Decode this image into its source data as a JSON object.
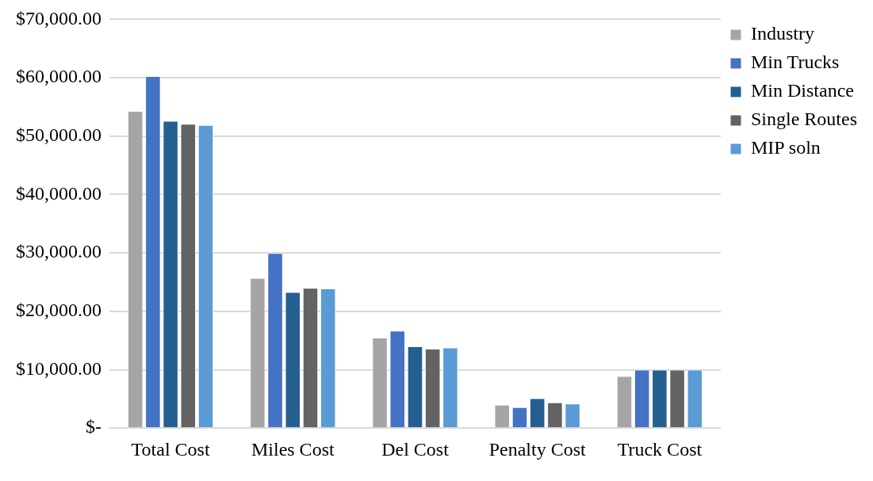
{
  "chart_data": {
    "type": "bar",
    "categories": [
      "Total Cost",
      "Miles Cost",
      "Del Cost",
      "Penalty Cost",
      "Truck Cost"
    ],
    "series": [
      {
        "name": "Industry",
        "color": "#a5a5a5",
        "values": [
          54300,
          25700,
          15500,
          4000,
          8900
        ]
      },
      {
        "name": "Min Trucks",
        "color": "#4472c4",
        "values": [
          60300,
          30000,
          16700,
          3600,
          10000
        ]
      },
      {
        "name": "Min Distance",
        "color": "#255e91",
        "values": [
          52600,
          23300,
          14000,
          5100,
          10000
        ]
      },
      {
        "name": "Single Routes",
        "color": "#636363",
        "values": [
          52100,
          24000,
          13600,
          4400,
          10000
        ]
      },
      {
        "name": "MIP soln",
        "color": "#5b9bd5",
        "values": [
          51900,
          23900,
          13800,
          4200,
          10000
        ]
      }
    ],
    "ylim": [
      0,
      70000
    ],
    "yticks": [
      {
        "value": 0,
        "label": "$-"
      },
      {
        "value": 10000,
        "label": "$10,000.00"
      },
      {
        "value": 20000,
        "label": "$20,000.00"
      },
      {
        "value": 30000,
        "label": "$30,000.00"
      },
      {
        "value": 40000,
        "label": "$40,000.00"
      },
      {
        "value": 50000,
        "label": "$50,000.00"
      },
      {
        "value": 60000,
        "label": "$60,000.00"
      },
      {
        "value": 70000,
        "label": "$70,000.00"
      }
    ],
    "grid": "y",
    "legend": "top right"
  }
}
